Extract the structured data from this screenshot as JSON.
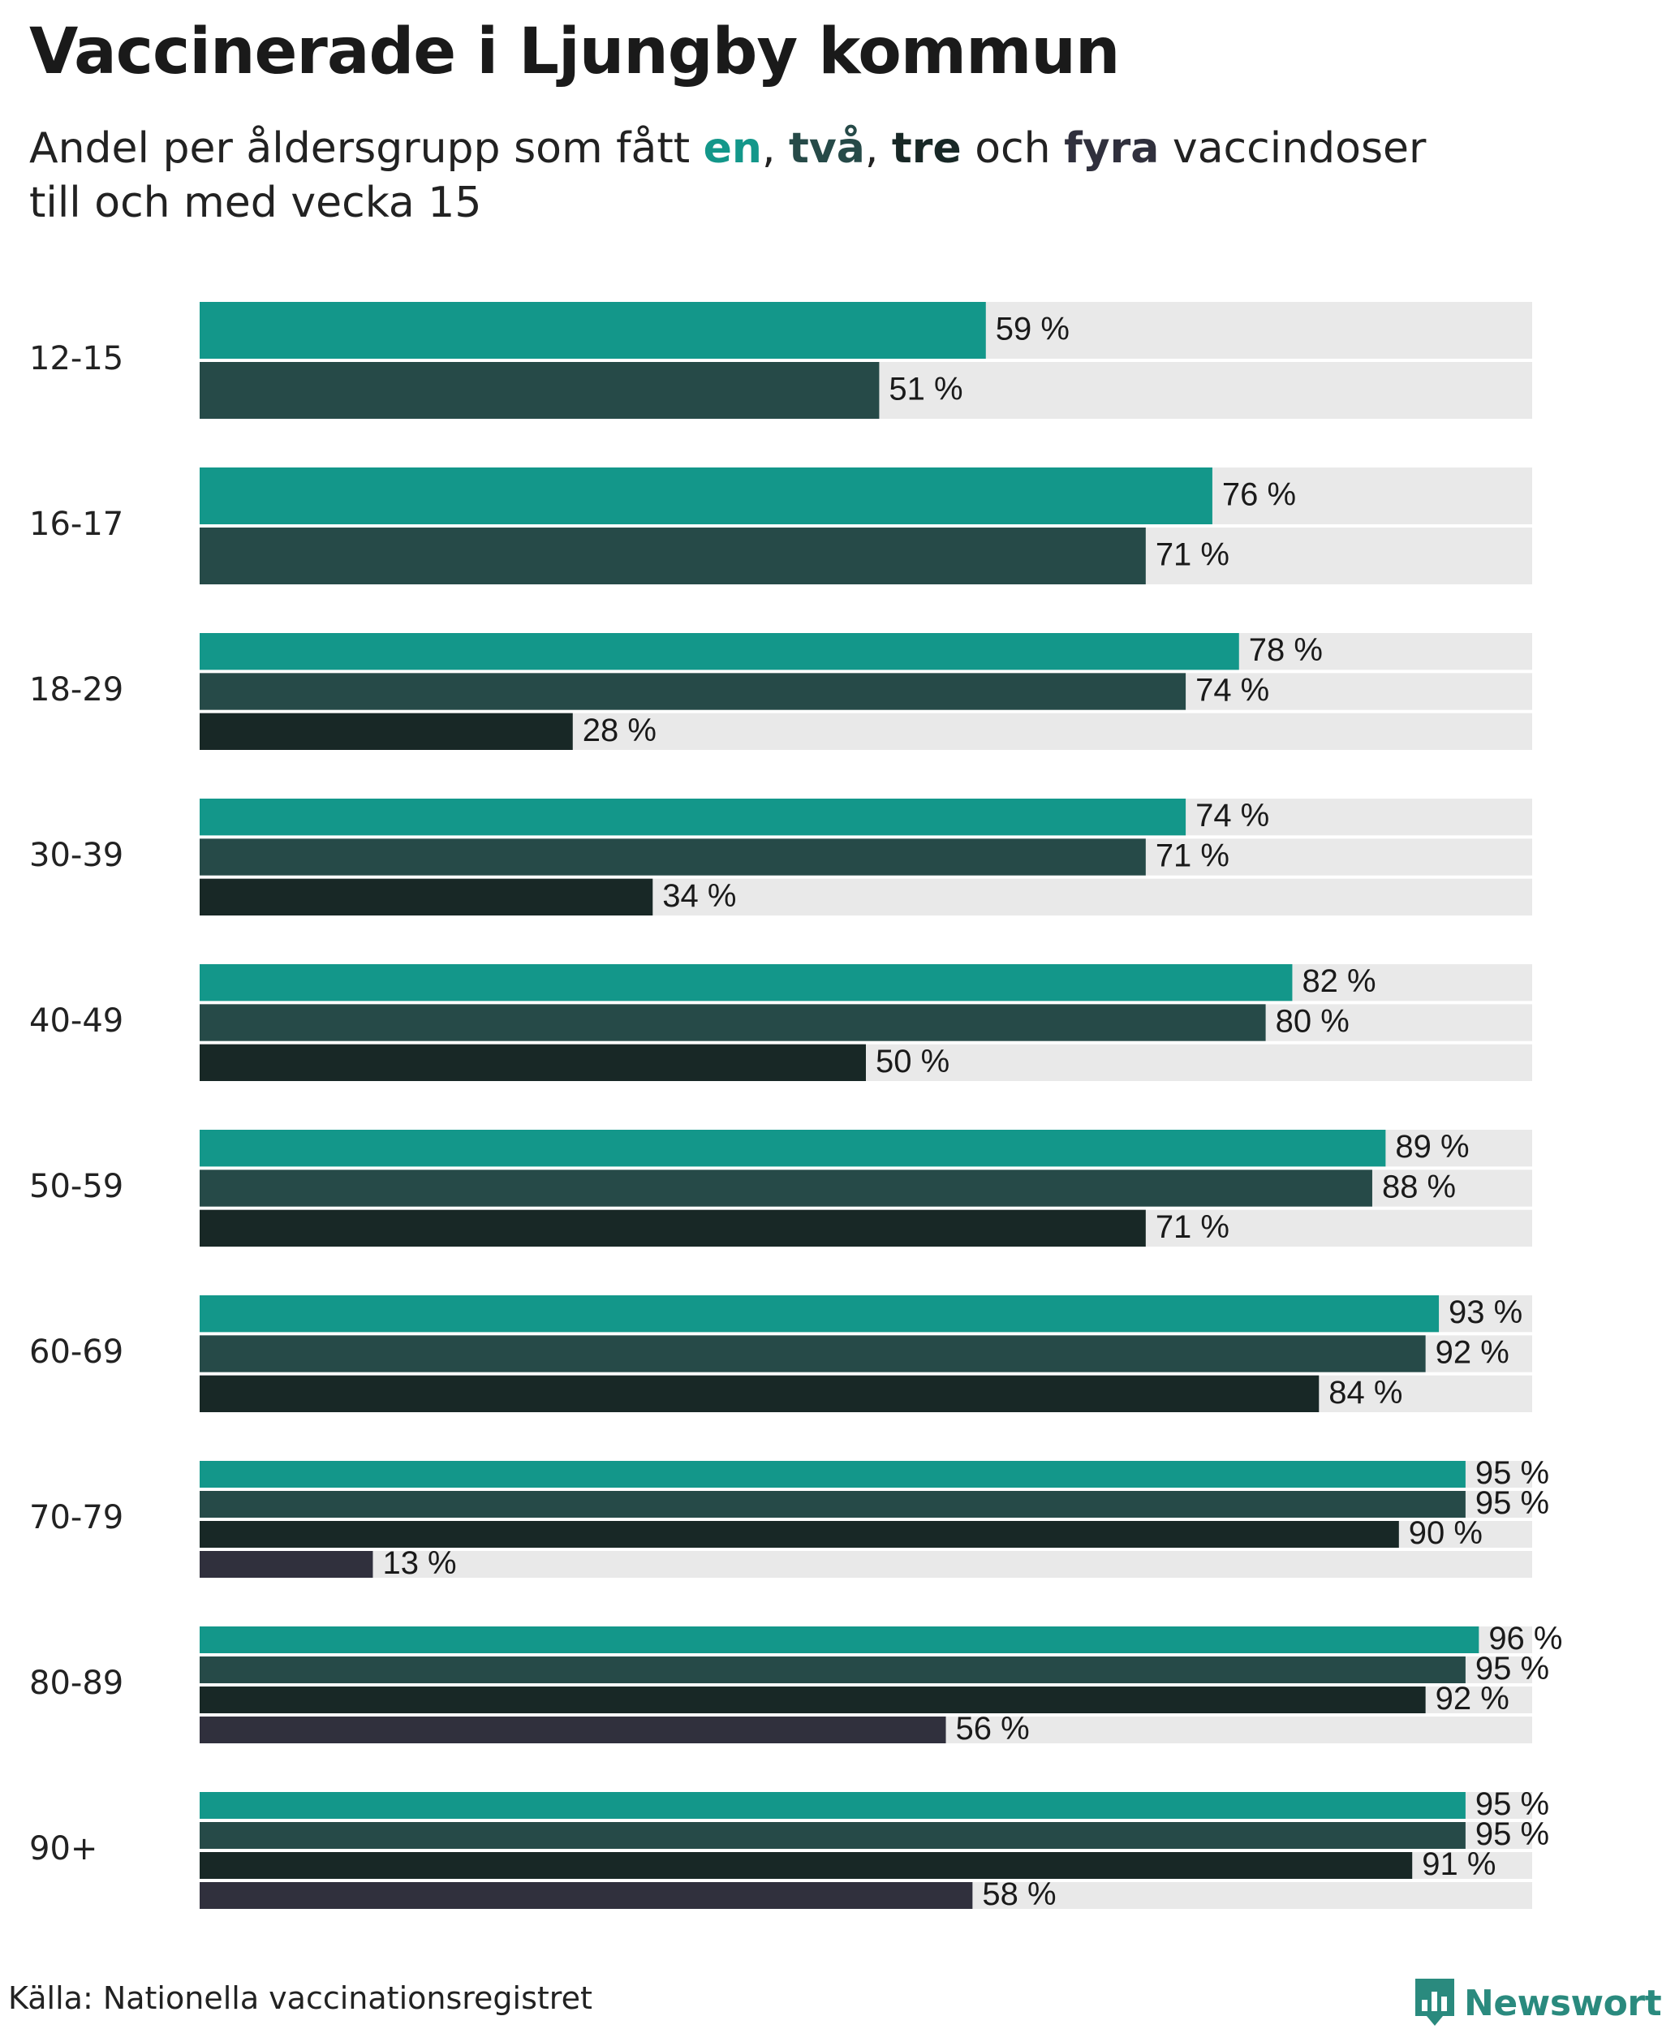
{
  "title": "Vaccinerade i Ljungby kommun",
  "subtitle": {
    "prefix": "Andel per åldersgrupp som fått ",
    "d1": "en",
    "sep1": ", ",
    "d2": "två",
    "sep2": ", ",
    "d3": "tre",
    "mid": " och ",
    "d4": "fyra",
    "suffix": " vaccindoser",
    "line2": "till och med vecka 15"
  },
  "source": "Källa: Nationella vaccinationsregistret",
  "brand": {
    "name": "Newsworthy",
    "icon": "newsworthy-logo-icon"
  },
  "colors": {
    "dose1": "#13978a",
    "dose2": "#264a48",
    "dose3": "#182826",
    "dose4": "#30303d",
    "track": "#e9e9e9",
    "brand": "#2a8a7e"
  },
  "chart_data": {
    "type": "bar",
    "orientation": "horizontal",
    "title": "Vaccinerade i Ljungby kommun",
    "subtitle": "Andel per åldersgrupp som fått en, två, tre och fyra vaccindoser till och med vecka 15",
    "xlim": [
      0,
      100
    ],
    "value_suffix": " %",
    "grid": false,
    "categories": [
      "12-15",
      "16-17",
      "18-29",
      "30-39",
      "40-49",
      "50-59",
      "60-69",
      "70-79",
      "80-89",
      "90+"
    ],
    "series": [
      {
        "name": "en",
        "values": [
          59,
          76,
          78,
          74,
          82,
          89,
          93,
          95,
          96,
          95
        ]
      },
      {
        "name": "två",
        "values": [
          51,
          71,
          74,
          71,
          80,
          88,
          92,
          95,
          95,
          95
        ]
      },
      {
        "name": "tre",
        "values": [
          null,
          null,
          28,
          34,
          50,
          71,
          84,
          90,
          92,
          91
        ]
      },
      {
        "name": "fyra",
        "values": [
          null,
          null,
          null,
          null,
          null,
          null,
          null,
          13,
          56,
          58
        ]
      }
    ]
  }
}
